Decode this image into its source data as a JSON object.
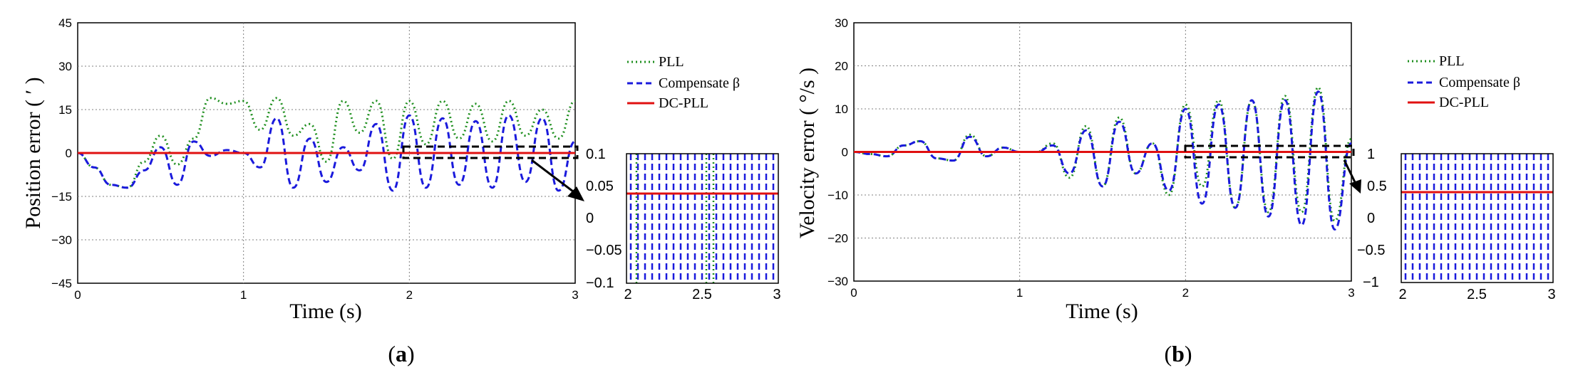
{
  "figure": {
    "panels": [
      {
        "caption": "a",
        "legend": [
          "PLL",
          "Compensate β",
          "DC-PLL"
        ],
        "inset_yticks": [
          "0.1",
          "0.05",
          "0",
          "−0.05",
          "−0.1"
        ],
        "inset_xticks": [
          "2",
          "2.5",
          "3"
        ]
      },
      {
        "caption": "b",
        "legend": [
          "PLL",
          "Compensate β",
          "DC-PLL"
        ],
        "inset_yticks": [
          "1",
          "0.5",
          "0",
          "−0.5",
          "−1"
        ],
        "inset_xticks": [
          "2",
          "2.5",
          "3"
        ]
      }
    ]
  },
  "colors": {
    "pll": "#1f8f1f",
    "compensate": "#1a1adc",
    "dcpll": "#e01010",
    "grid": "#808080"
  },
  "chart_data": [
    {
      "type": "line",
      "xlabel": "Time (s)",
      "ylabel": "Position error ( ′ )",
      "xlim": [
        0,
        3
      ],
      "ylim": [
        -45,
        45
      ],
      "xticks": [
        "0",
        "1",
        "2",
        "3"
      ],
      "yticks": [
        "45",
        "30",
        "15",
        "0",
        "−15",
        "−30",
        "−45"
      ],
      "grid": true,
      "legend_position": "outside-right",
      "x": [
        0,
        0.1,
        0.2,
        0.3,
        0.4,
        0.5,
        0.6,
        0.7,
        0.8,
        0.9,
        1.0,
        1.1,
        1.2,
        1.3,
        1.4,
        1.5,
        1.6,
        1.7,
        1.8,
        1.9,
        2.0,
        2.1,
        2.2,
        2.3,
        2.4,
        2.5,
        2.6,
        2.7,
        2.8,
        2.9,
        3.0
      ],
      "series": [
        {
          "name": "PLL",
          "style": "dotted",
          "values": [
            0,
            -5,
            -11,
            -12,
            -3,
            6,
            -4,
            5,
            19,
            17,
            18,
            8,
            19,
            6,
            10,
            -3,
            18,
            7,
            18,
            -2,
            18,
            3,
            18,
            5,
            17,
            4,
            18,
            6,
            15,
            5,
            18
          ]
        },
        {
          "name": "Compensate β",
          "style": "dashed",
          "values": [
            0,
            -5,
            -11,
            -12,
            -6,
            2,
            -11,
            4,
            -1,
            1,
            0,
            -5,
            12,
            -12,
            5,
            -10,
            2,
            -6,
            10,
            -13,
            13,
            -12,
            12,
            -11,
            11,
            -12,
            13,
            -10,
            12,
            -13,
            4
          ]
        },
        {
          "name": "DC-PLL",
          "style": "solid",
          "values": [
            0,
            0,
            0,
            0,
            0,
            0,
            0,
            0,
            0,
            0,
            0,
            0,
            0,
            0,
            0,
            0,
            0,
            0,
            0,
            0,
            0,
            0,
            0,
            0,
            0,
            0,
            0,
            0,
            0,
            0,
            0
          ]
        }
      ]
    },
    {
      "type": "line",
      "xlabel": "Time (s)",
      "ylabel": "Velocity error ( °/s )",
      "xlim": [
        0,
        3
      ],
      "ylim": [
        -30,
        30
      ],
      "xticks": [
        "0",
        "1",
        "2",
        "3"
      ],
      "yticks": [
        "30",
        "20",
        "10",
        "0",
        "−10",
        "−20",
        "−30"
      ],
      "grid": true,
      "legend_position": "outside-right",
      "x": [
        0,
        0.1,
        0.2,
        0.3,
        0.4,
        0.5,
        0.6,
        0.7,
        0.8,
        0.9,
        1.0,
        1.1,
        1.2,
        1.3,
        1.4,
        1.5,
        1.6,
        1.7,
        1.8,
        1.9,
        2.0,
        2.1,
        2.2,
        2.3,
        2.4,
        2.5,
        2.6,
        2.7,
        2.8,
        2.9,
        3.0
      ],
      "series": [
        {
          "name": "PLL",
          "style": "dotted",
          "values": [
            0,
            -0.5,
            -1,
            1.5,
            2.5,
            -1.5,
            -2,
            4,
            -1,
            1,
            0,
            0,
            2,
            -6,
            6,
            -8,
            8,
            -5,
            2,
            -10,
            11,
            -8,
            12,
            -13,
            12,
            -14,
            13,
            -14,
            15,
            -16,
            3
          ]
        },
        {
          "name": "Compensate β",
          "style": "dashed",
          "values": [
            0,
            -0.5,
            -1,
            1.5,
            2.5,
            -1.5,
            -2,
            3.5,
            -1,
            1,
            0,
            0,
            1.5,
            -5,
            5,
            -8,
            7,
            -5,
            2,
            -9,
            10,
            -12,
            11,
            -13,
            12,
            -15,
            12,
            -17,
            14,
            -18,
            2
          ]
        },
        {
          "name": "DC-PLL",
          "style": "solid",
          "values": [
            0,
            0,
            0,
            0,
            0,
            0,
            0,
            0,
            0,
            0,
            0,
            0,
            0,
            0,
            0,
            0,
            0,
            0,
            0,
            0,
            0,
            0,
            0,
            0,
            0,
            0,
            0,
            0,
            0,
            0,
            0
          ]
        }
      ]
    }
  ]
}
